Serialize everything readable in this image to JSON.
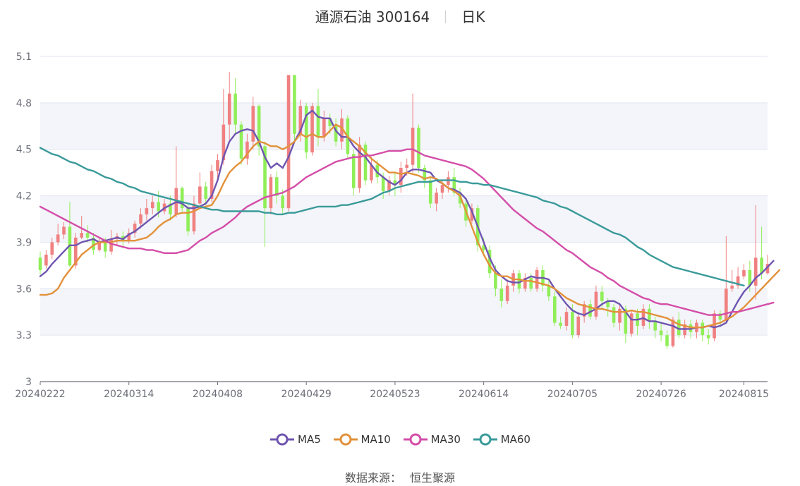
{
  "header": {
    "name": "通源石油 300164",
    "period": "日K"
  },
  "source": {
    "label": "数据来源：",
    "value": "恒生聚源"
  },
  "colors": {
    "up": "#f08080",
    "down": "#90ee58",
    "ma5": "#6f55b0",
    "ma10": "#e2913a",
    "ma30": "#d44da8",
    "ma60": "#3a9a9a",
    "grid": "#e0e6f1",
    "band": "#f3f5fa",
    "axis": "#6e7079"
  },
  "chart_data": {
    "type": "candlestick",
    "ylim": [
      3,
      5.1
    ],
    "yticks": [
      3,
      3.3,
      3.6,
      3.9,
      4.2,
      4.5,
      4.8,
      5.1
    ],
    "xtick_labels": [
      "20240222",
      "20240314",
      "20240408",
      "20240429",
      "20240523",
      "20240614",
      "20240705",
      "20240726",
      "20240815"
    ],
    "xtick_index": [
      0,
      15,
      30,
      45,
      60,
      75,
      90,
      105,
      119
    ],
    "candles": [
      [
        3.8,
        3.72,
        3.84,
        3.69
      ],
      [
        3.75,
        3.82,
        3.85,
        3.73
      ],
      [
        3.82,
        3.9,
        3.93,
        3.79
      ],
      [
        3.9,
        3.95,
        4.02,
        3.88
      ],
      [
        3.95,
        4.0,
        4.03,
        3.92
      ],
      [
        4.0,
        3.75,
        4.16,
        3.74
      ],
      [
        3.75,
        3.93,
        3.96,
        3.73
      ],
      [
        3.93,
        3.96,
        4.07,
        3.92
      ],
      [
        3.96,
        3.93,
        4.01,
        3.9
      ],
      [
        3.93,
        3.85,
        3.96,
        3.82
      ],
      [
        3.85,
        3.9,
        3.93,
        3.84
      ],
      [
        3.9,
        3.84,
        3.93,
        3.8
      ],
      [
        3.84,
        3.92,
        3.98,
        3.82
      ],
      [
        3.92,
        3.94,
        3.96,
        3.88
      ],
      [
        3.94,
        3.91,
        3.97,
        3.86
      ],
      [
        3.91,
        3.96,
        3.99,
        3.89
      ],
      [
        3.96,
        4.02,
        4.04,
        3.93
      ],
      [
        4.02,
        4.08,
        4.12,
        3.99
      ],
      [
        4.08,
        4.12,
        4.18,
        4.04
      ],
      [
        4.12,
        4.16,
        4.2,
        4.08
      ],
      [
        4.16,
        4.1,
        4.23,
        4.06
      ],
      [
        4.1,
        4.15,
        4.18,
        4.08
      ],
      [
        4.15,
        4.08,
        4.2,
        4.04
      ],
      [
        4.08,
        4.25,
        4.52,
        4.06
      ],
      [
        4.25,
        4.12,
        4.26,
        4.1
      ],
      [
        4.12,
        3.97,
        4.15,
        3.94
      ],
      [
        3.97,
        4.15,
        4.2,
        3.95
      ],
      [
        4.15,
        4.26,
        4.35,
        4.12
      ],
      [
        4.26,
        4.18,
        4.29,
        4.14
      ],
      [
        4.18,
        4.36,
        4.4,
        4.16
      ],
      [
        4.36,
        4.43,
        4.47,
        4.3
      ],
      [
        4.43,
        4.66,
        4.89,
        4.4
      ],
      [
        4.66,
        4.86,
        5.0,
        4.56
      ],
      [
        4.86,
        4.66,
        4.96,
        4.6
      ],
      [
        4.66,
        4.44,
        4.68,
        4.4
      ],
      [
        4.44,
        4.55,
        4.6,
        4.4
      ],
      [
        4.55,
        4.78,
        4.84,
        4.5
      ],
      [
        4.78,
        4.52,
        4.79,
        4.46
      ],
      [
        4.52,
        4.12,
        4.55,
        3.87
      ],
      [
        4.12,
        4.32,
        4.34,
        4.08
      ],
      [
        4.32,
        4.2,
        4.36,
        4.15
      ],
      [
        4.2,
        4.12,
        4.24,
        4.08
      ],
      [
        4.12,
        4.98,
        4.98,
        4.1
      ],
      [
        4.98,
        4.6,
        4.98,
        4.55
      ],
      [
        4.6,
        4.78,
        4.82,
        4.55
      ],
      [
        4.78,
        4.48,
        4.8,
        4.44
      ],
      [
        4.48,
        4.78,
        4.8,
        4.46
      ],
      [
        4.78,
        4.58,
        4.89,
        4.52
      ],
      [
        4.58,
        4.7,
        4.75,
        4.55
      ],
      [
        4.7,
        4.65,
        4.73,
        4.6
      ],
      [
        4.65,
        4.55,
        4.7,
        4.52
      ],
      [
        4.55,
        4.7,
        4.76,
        4.5
      ],
      [
        4.7,
        4.47,
        4.72,
        4.44
      ],
      [
        4.47,
        4.25,
        4.5,
        4.2
      ],
      [
        4.25,
        4.53,
        4.58,
        4.22
      ],
      [
        4.53,
        4.3,
        4.55,
        4.27
      ],
      [
        4.3,
        4.4,
        4.45,
        4.28
      ],
      [
        4.4,
        4.32,
        4.43,
        4.28
      ],
      [
        4.32,
        4.23,
        4.35,
        4.18
      ],
      [
        4.23,
        4.3,
        4.33,
        4.2
      ],
      [
        4.3,
        4.27,
        4.35,
        4.2
      ],
      [
        4.27,
        4.38,
        4.42,
        4.22
      ],
      [
        4.38,
        4.4,
        4.44,
        4.33
      ],
      [
        4.4,
        4.64,
        4.86,
        4.35
      ],
      [
        4.64,
        4.38,
        4.66,
        4.35
      ],
      [
        4.38,
        4.3,
        4.4,
        4.25
      ],
      [
        4.3,
        4.15,
        4.32,
        4.12
      ],
      [
        4.15,
        4.22,
        4.25,
        4.1
      ],
      [
        4.22,
        4.27,
        4.3,
        4.18
      ],
      [
        4.27,
        4.32,
        4.36,
        4.22
      ],
      [
        4.32,
        4.22,
        4.38,
        4.2
      ],
      [
        4.22,
        4.15,
        4.25,
        4.12
      ],
      [
        4.15,
        4.04,
        4.18,
        4.0
      ],
      [
        4.04,
        4.12,
        4.15,
        4.02
      ],
      [
        4.12,
        3.88,
        4.14,
        3.84
      ],
      [
        3.88,
        3.85,
        3.93,
        3.82
      ],
      [
        3.85,
        3.7,
        3.88,
        3.67
      ],
      [
        3.7,
        3.6,
        3.75,
        3.55
      ],
      [
        3.6,
        3.52,
        3.66,
        3.48
      ],
      [
        3.52,
        3.62,
        3.66,
        3.5
      ],
      [
        3.62,
        3.7,
        3.72,
        3.58
      ],
      [
        3.7,
        3.6,
        3.72,
        3.57
      ],
      [
        3.6,
        3.67,
        3.7,
        3.58
      ],
      [
        3.67,
        3.6,
        3.7,
        3.58
      ],
      [
        3.6,
        3.72,
        3.74,
        3.58
      ],
      [
        3.72,
        3.62,
        3.75,
        3.58
      ],
      [
        3.62,
        3.55,
        3.65,
        3.52
      ],
      [
        3.55,
        3.38,
        3.58,
        3.36
      ],
      [
        3.38,
        3.36,
        3.42,
        3.34
      ],
      [
        3.36,
        3.45,
        3.48,
        3.33
      ],
      [
        3.45,
        3.3,
        3.5,
        3.28
      ],
      [
        3.3,
        3.42,
        3.45,
        3.28
      ],
      [
        3.42,
        3.5,
        3.52,
        3.38
      ],
      [
        3.5,
        3.42,
        3.53,
        3.4
      ],
      [
        3.42,
        3.58,
        3.62,
        3.4
      ],
      [
        3.58,
        3.52,
        3.62,
        3.48
      ],
      [
        3.52,
        3.48,
        3.54,
        3.42
      ],
      [
        3.48,
        3.38,
        3.5,
        3.35
      ],
      [
        3.38,
        3.47,
        3.5,
        3.33
      ],
      [
        3.47,
        3.31,
        3.49,
        3.25
      ],
      [
        3.31,
        3.44,
        3.46,
        3.29
      ],
      [
        3.44,
        3.36,
        3.47,
        3.3
      ],
      [
        3.36,
        3.47,
        3.5,
        3.34
      ],
      [
        3.47,
        3.39,
        3.5,
        3.34
      ],
      [
        3.39,
        3.33,
        3.42,
        3.28
      ],
      [
        3.33,
        3.3,
        3.38,
        3.26
      ],
      [
        3.3,
        3.23,
        3.33,
        3.21
      ],
      [
        3.23,
        3.4,
        3.42,
        3.22
      ],
      [
        3.4,
        3.3,
        3.45,
        3.28
      ],
      [
        3.3,
        3.37,
        3.4,
        3.28
      ],
      [
        3.37,
        3.32,
        3.4,
        3.28
      ],
      [
        3.32,
        3.38,
        3.4,
        3.28
      ],
      [
        3.38,
        3.3,
        3.4,
        3.26
      ],
      [
        3.3,
        3.28,
        3.34,
        3.24
      ],
      [
        3.28,
        3.44,
        3.46,
        3.26
      ],
      [
        3.44,
        3.4,
        3.46,
        3.36
      ],
      [
        3.4,
        3.6,
        3.94,
        3.38
      ],
      [
        3.6,
        3.62,
        3.72,
        3.58
      ],
      [
        3.62,
        3.68,
        3.74,
        3.6
      ],
      [
        3.68,
        3.72,
        3.76,
        3.66
      ],
      [
        3.72,
        3.62,
        3.78,
        3.58
      ],
      [
        3.62,
        3.8,
        4.14,
        3.53
      ],
      [
        3.8,
        3.7,
        4.0,
        3.66
      ],
      [
        3.7,
        3.76,
        3.82,
        3.69
      ]
    ],
    "series": [
      {
        "name": "MA5",
        "values": [
          3.68,
          3.71,
          3.76,
          3.8,
          3.84,
          3.88,
          3.88,
          3.9,
          3.91,
          3.92,
          3.9,
          3.91,
          3.92,
          3.93,
          3.92,
          3.95,
          3.97,
          4.0,
          4.03,
          4.06,
          4.09,
          4.12,
          4.14,
          4.16,
          4.15,
          4.12,
          4.12,
          4.13,
          4.15,
          4.2,
          4.3,
          4.45,
          4.55,
          4.6,
          4.62,
          4.63,
          4.62,
          4.55,
          4.45,
          4.38,
          4.41,
          4.38,
          4.45,
          4.55,
          4.62,
          4.72,
          4.75,
          4.71,
          4.7,
          4.7,
          4.62,
          4.58,
          4.58,
          4.52,
          4.48,
          4.45,
          4.4,
          4.35,
          4.32,
          4.29,
          4.27,
          4.3,
          4.35,
          4.37,
          4.37,
          4.36,
          4.35,
          4.3,
          4.28,
          4.25,
          4.24,
          4.22,
          4.18,
          4.1,
          4.0,
          3.9,
          3.8,
          3.72,
          3.68,
          3.65,
          3.64,
          3.64,
          3.66,
          3.68,
          3.67,
          3.67,
          3.66,
          3.6,
          3.55,
          3.5,
          3.46,
          3.44,
          3.43,
          3.45,
          3.47,
          3.5,
          3.52,
          3.52,
          3.5,
          3.45,
          3.4,
          3.4,
          3.41,
          3.39,
          3.39,
          3.38,
          3.37,
          3.36,
          3.34,
          3.34,
          3.34,
          3.35,
          3.35,
          3.36,
          3.35,
          3.36,
          3.38,
          3.45,
          3.52,
          3.58,
          3.62,
          3.67,
          3.7,
          3.74,
          3.78
        ]
      },
      {
        "name": "MA10",
        "values": [
          3.56,
          3.56,
          3.57,
          3.6,
          3.67,
          3.72,
          3.77,
          3.82,
          3.85,
          3.88,
          3.9,
          3.9,
          3.9,
          3.91,
          3.91,
          3.91,
          3.91,
          3.92,
          3.93,
          3.96,
          4.0,
          4.03,
          4.05,
          4.08,
          4.09,
          4.09,
          4.1,
          4.12,
          4.13,
          4.14,
          4.2,
          4.28,
          4.35,
          4.39,
          4.42,
          4.47,
          4.52,
          4.55,
          4.54,
          4.52,
          4.52,
          4.5,
          4.52,
          4.55,
          4.6,
          4.58,
          4.6,
          4.58,
          4.58,
          4.62,
          4.66,
          4.64,
          4.58,
          4.55,
          4.52,
          4.48,
          4.44,
          4.41,
          4.38,
          4.35,
          4.35,
          4.34,
          4.35,
          4.34,
          4.33,
          4.31,
          4.32,
          4.31,
          4.28,
          4.25,
          4.23,
          4.2,
          4.1,
          4.0,
          3.9,
          3.82,
          3.75,
          3.7,
          3.68,
          3.68,
          3.66,
          3.66,
          3.65,
          3.65,
          3.64,
          3.63,
          3.62,
          3.6,
          3.57,
          3.54,
          3.52,
          3.5,
          3.49,
          3.48,
          3.47,
          3.47,
          3.46,
          3.45,
          3.45,
          3.45,
          3.46,
          3.45,
          3.45,
          3.44,
          3.43,
          3.42,
          3.41,
          3.39,
          3.37,
          3.36,
          3.35,
          3.35,
          3.35,
          3.36,
          3.37,
          3.38,
          3.4,
          3.42,
          3.45,
          3.48,
          3.52,
          3.56,
          3.6,
          3.64,
          3.68,
          3.72
        ]
      },
      {
        "name": "MA30",
        "values": [
          4.13,
          4.11,
          4.09,
          4.07,
          4.05,
          4.03,
          4.01,
          3.99,
          3.97,
          3.95,
          3.93,
          3.91,
          3.89,
          3.88,
          3.87,
          3.86,
          3.86,
          3.86,
          3.85,
          3.85,
          3.84,
          3.83,
          3.83,
          3.83,
          3.84,
          3.85,
          3.88,
          3.91,
          3.93,
          3.96,
          3.98,
          4.0,
          4.03,
          4.06,
          4.1,
          4.13,
          4.15,
          4.17,
          4.19,
          4.2,
          4.21,
          4.22,
          4.24,
          4.26,
          4.29,
          4.32,
          4.34,
          4.36,
          4.38,
          4.4,
          4.42,
          4.43,
          4.44,
          4.45,
          4.45,
          4.46,
          4.46,
          4.47,
          4.48,
          4.49,
          4.49,
          4.49,
          4.5,
          4.5,
          4.48,
          4.46,
          4.45,
          4.44,
          4.43,
          4.42,
          4.41,
          4.4,
          4.39,
          4.37,
          4.34,
          4.31,
          4.27,
          4.23,
          4.19,
          4.15,
          4.11,
          4.08,
          4.05,
          4.02,
          3.99,
          3.97,
          3.94,
          3.91,
          3.88,
          3.85,
          3.83,
          3.8,
          3.77,
          3.74,
          3.72,
          3.7,
          3.67,
          3.65,
          3.62,
          3.6,
          3.58,
          3.56,
          3.54,
          3.53,
          3.51,
          3.5,
          3.5,
          3.49,
          3.48,
          3.47,
          3.46,
          3.45,
          3.44,
          3.43,
          3.43,
          3.43,
          3.44,
          3.45,
          3.45,
          3.46,
          3.47,
          3.48,
          3.49,
          3.5,
          3.51
        ]
      },
      {
        "name": "MA60",
        "values": [
          4.51,
          4.49,
          4.47,
          4.46,
          4.44,
          4.42,
          4.41,
          4.39,
          4.37,
          4.36,
          4.34,
          4.32,
          4.31,
          4.29,
          4.28,
          4.26,
          4.25,
          4.23,
          4.22,
          4.21,
          4.2,
          4.19,
          4.18,
          4.17,
          4.16,
          4.15,
          4.14,
          4.13,
          4.12,
          4.11,
          4.11,
          4.1,
          4.1,
          4.1,
          4.1,
          4.1,
          4.1,
          4.1,
          4.09,
          4.09,
          4.08,
          4.08,
          4.09,
          4.09,
          4.1,
          4.11,
          4.12,
          4.13,
          4.13,
          4.13,
          4.13,
          4.14,
          4.14,
          4.15,
          4.16,
          4.17,
          4.18,
          4.2,
          4.22,
          4.23,
          4.25,
          4.26,
          4.27,
          4.28,
          4.29,
          4.29,
          4.29,
          4.3,
          4.3,
          4.3,
          4.3,
          4.29,
          4.29,
          4.28,
          4.28,
          4.27,
          4.27,
          4.26,
          4.25,
          4.24,
          4.23,
          4.22,
          4.21,
          4.2,
          4.19,
          4.17,
          4.16,
          4.15,
          4.13,
          4.12,
          4.1,
          4.08,
          4.06,
          4.04,
          4.02,
          4.0,
          3.98,
          3.96,
          3.95,
          3.93,
          3.9,
          3.87,
          3.85,
          3.82,
          3.8,
          3.78,
          3.76,
          3.74,
          3.73,
          3.72,
          3.71,
          3.7,
          3.69,
          3.68,
          3.67,
          3.66,
          3.65,
          3.64,
          3.63,
          3.62
        ]
      }
    ]
  }
}
